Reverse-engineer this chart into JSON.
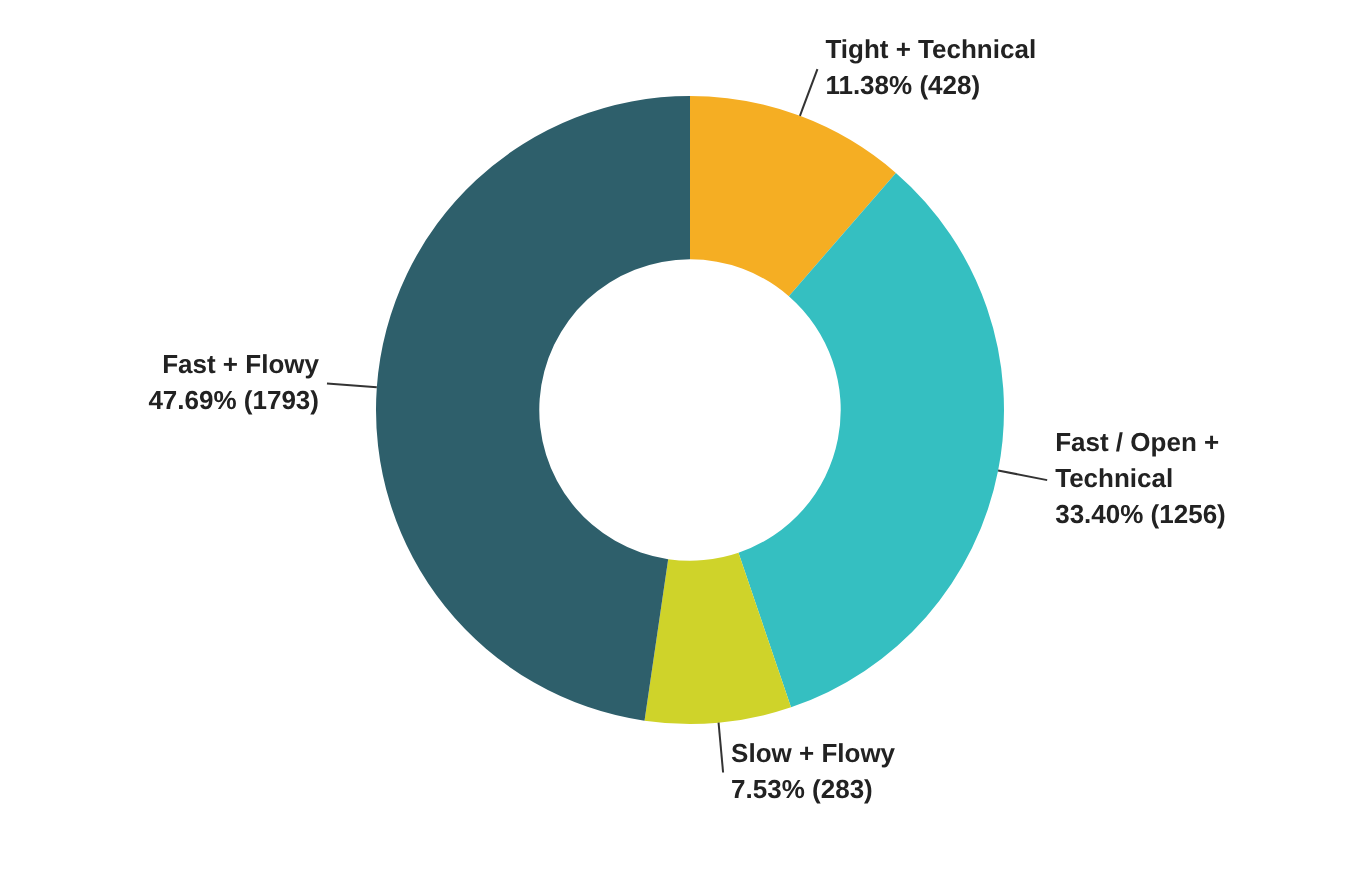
{
  "chart_data": {
    "type": "donut",
    "categories": [
      "Tight + Technical",
      "Fast / Open + Technical",
      "Slow + Flowy",
      "Fast + Flowy"
    ],
    "values": [
      428,
      1256,
      283,
      1793
    ],
    "value_labels": [
      "11.38% (428)",
      "33.40% (1256)",
      "7.53% (283)",
      "47.69% (1793)"
    ],
    "colors": [
      "#f5ae23",
      "#35bfc1",
      "#cfd32a",
      "#2e5f6b"
    ],
    "legend": false
  }
}
